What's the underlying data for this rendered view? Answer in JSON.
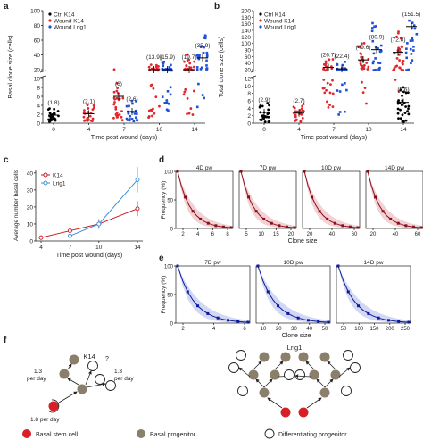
{
  "colors": {
    "ctrl": "#000000",
    "wound_k14": "#e0282e",
    "wound_lrig1": "#1f4fd6",
    "k14_dark": "#8b0d1a",
    "k14_line": "#c8141e",
    "lrig1_line": "#3b8fd6",
    "lrig1_dark": "#0a1a9a",
    "basal_stem": "#d81f26",
    "basal_prog": "#8a7f6a"
  },
  "chart_data": [
    {
      "panel": "a",
      "type": "scatter",
      "ylabel": "Basal clone size (cells)",
      "xlabel": "Time post wound (days)",
      "x_ticks": [
        "0",
        "4",
        "7",
        "10",
        "14"
      ],
      "y_ticks_lower": [
        "0",
        "2",
        "4",
        "6",
        "8",
        "10"
      ],
      "y_ticks_upper": [
        "20",
        "40",
        "60",
        "80",
        "100"
      ],
      "legend": [
        "Ctrl K14",
        "Wound K14",
        "Wound Lrig1"
      ],
      "series": [
        {
          "name": "Ctrl K14",
          "x": [
            0
          ],
          "values": [
            1.8
          ],
          "labels": [
            "(1.8)"
          ]
        },
        {
          "name": "Wound K14",
          "x": [
            4,
            7,
            10,
            14
          ],
          "values": [
            2.1,
            6,
            13.9,
            19.7
          ],
          "labels": [
            "(2.1)",
            "(6)",
            "(13.9)",
            "(19.7)"
          ]
        },
        {
          "name": "Wound Lrig1",
          "x": [
            7,
            10,
            14
          ],
          "values": [
            2.6,
            15.9,
            35.9
          ],
          "labels": [
            "(2.6)",
            "(15.9)",
            "(35.9)"
          ]
        }
      ]
    },
    {
      "panel": "b",
      "type": "scatter",
      "ylabel": "Total clone size (cells)",
      "xlabel": "Time post wound (days)",
      "x_ticks": [
        "0",
        "4",
        "7",
        "10",
        "14"
      ],
      "y_ticks_lower": [
        "0",
        "2",
        "4",
        "6",
        "8",
        "10",
        "12"
      ],
      "y_ticks_upper": [
        "20",
        "40",
        "60",
        "80",
        "100",
        "120",
        "140",
        "160",
        "180",
        "200"
      ],
      "legend": [
        "Ctrl K14",
        "Wound K14",
        "Wound Lrig1"
      ],
      "series": [
        {
          "name": "Ctrl K14",
          "x": [
            0
          ],
          "values": [
            2.9
          ],
          "labels": [
            "(2.9)"
          ]
        },
        {
          "name": "Wound K14",
          "x": [
            4,
            7,
            10,
            14
          ],
          "values": [
            2.7,
            26.7,
            49.6,
            72.8
          ],
          "labels": [
            "(2.7)",
            "(26.7)",
            "(49.6)",
            "(72.8)"
          ]
        },
        {
          "name": "Wound Lrig1",
          "x": [
            7,
            10,
            14
          ],
          "values": [
            22.4,
            80.9,
            151.5
          ],
          "labels": [
            "(22.4)",
            "(80.9)",
            "(151.5)"
          ]
        },
        {
          "name": "Ctrl K14 day 14",
          "x": [
            14
          ],
          "values": [
            5.6
          ],
          "labels": [
            "(5.6)"
          ]
        }
      ]
    },
    {
      "panel": "c",
      "type": "line",
      "ylabel": "Average number basal cells",
      "xlabel": "Time post wound (days)",
      "x_ticks": [
        "4",
        "7",
        "10",
        "14"
      ],
      "y_ticks": [
        "0",
        "10",
        "20",
        "30",
        "40"
      ],
      "ylim": [
        0,
        42
      ],
      "series": [
        {
          "name": "K14",
          "x": [
            4,
            7,
            10,
            14
          ],
          "values": [
            2,
            6,
            10,
            19
          ]
        },
        {
          "name": "Lrig1",
          "x": [
            7,
            10,
            14
          ],
          "values": [
            3,
            10,
            36
          ]
        }
      ]
    },
    {
      "panel": "d",
      "type": "line",
      "ylabel": "Frequency (%)",
      "xlabel": "Clone size",
      "subplots": [
        {
          "title": "4D pw",
          "xticks": [
            "2",
            "4",
            "6",
            "8"
          ],
          "yticks": [
            "100",
            "50",
            "0"
          ]
        },
        {
          "title": "7D pw",
          "xticks": [
            "5",
            "10",
            "15",
            "20"
          ]
        },
        {
          "title": "10D pw",
          "xticks": [
            "20",
            "40",
            "60"
          ]
        },
        {
          "title": "14D pw",
          "xticks": [
            "20",
            "40",
            "60"
          ]
        }
      ]
    },
    {
      "panel": "e",
      "type": "line",
      "ylabel": "Frequency (%)",
      "xlabel": "Clone size",
      "subplots": [
        {
          "title": "7D pw",
          "xticks": [
            "2",
            "4",
            "6"
          ],
          "yticks": [
            "100",
            "50",
            "0"
          ]
        },
        {
          "title": "10D pw",
          "xticks": [
            "10",
            "20",
            "30",
            "40",
            "50"
          ]
        },
        {
          "title": "14D pw",
          "xticks": [
            "50",
            "100",
            "150",
            "200",
            "250"
          ]
        }
      ]
    }
  ],
  "panel_labels": {
    "a": "a",
    "b": "b",
    "c": "c",
    "d": "d",
    "e": "e",
    "f": "f"
  },
  "diagram_f": {
    "k14_title": "K14",
    "lrig1_title": "Lrig1",
    "rate_1_3a": "1.3",
    "rate_1_3a_unit": "per day",
    "rate_1_3b": "1.3",
    "rate_1_3b_unit": "per day",
    "rate_1_8": "1.8 per day",
    "question": "?",
    "legend_stem": "Basal stem cell",
    "legend_prog": "Basal progenitor",
    "legend_diff": "Differentiating progenitor"
  }
}
